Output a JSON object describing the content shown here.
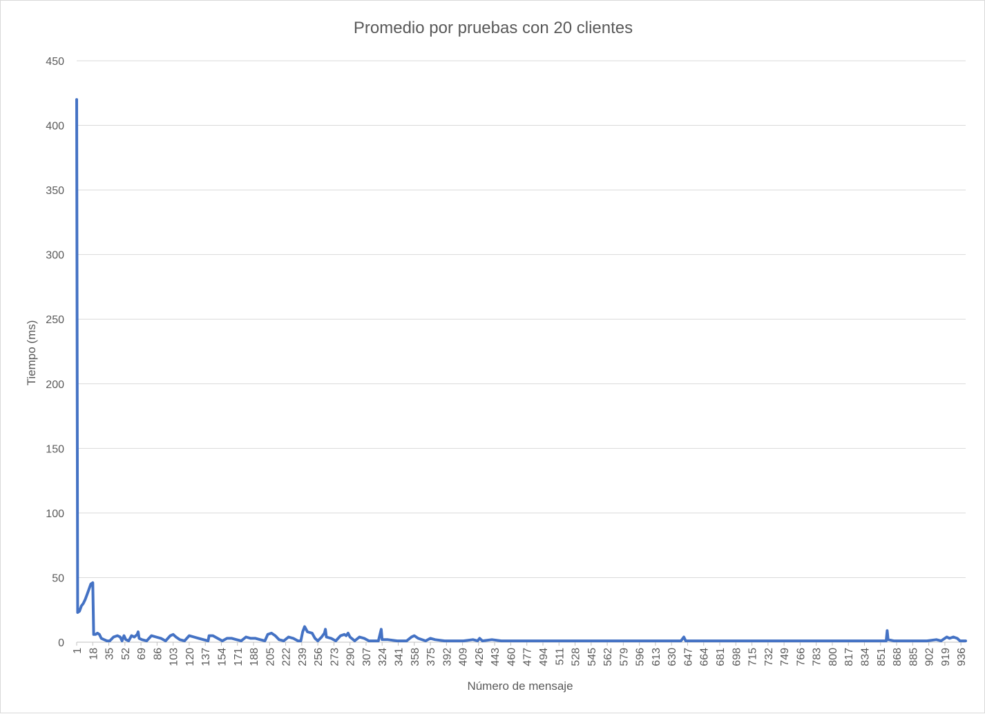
{
  "chart_data": {
    "type": "line",
    "title": "Promedio por pruebas con 20 clientes",
    "xlabel": "Número de mensaje",
    "ylabel": "Tiempo (ms)",
    "ylim": [
      0,
      450
    ],
    "yticks": [
      0,
      50,
      100,
      150,
      200,
      250,
      300,
      350,
      400,
      450
    ],
    "x_range": [
      1,
      941
    ],
    "x_tick_labels": [
      "1",
      "18",
      "35",
      "52",
      "69",
      "86",
      "103",
      "120",
      "137",
      "154",
      "171",
      "188",
      "205",
      "222",
      "239",
      "256",
      "273",
      "290",
      "307",
      "324",
      "341",
      "358",
      "375",
      "392",
      "409",
      "426",
      "443",
      "460",
      "477",
      "494",
      "511",
      "528",
      "545",
      "562",
      "579",
      "596",
      "613",
      "630",
      "647",
      "664",
      "681",
      "698",
      "715",
      "732",
      "749",
      "766",
      "783",
      "800",
      "817",
      "834",
      "851",
      "868",
      "885",
      "902",
      "919",
      "936"
    ],
    "grid": true,
    "legend": "none",
    "line_color": "#4472c4",
    "series": [
      {
        "points": [
          [
            1,
            420
          ],
          [
            2,
            23
          ],
          [
            4,
            24
          ],
          [
            6,
            28
          ],
          [
            8,
            30
          ],
          [
            10,
            33
          ],
          [
            12,
            37
          ],
          [
            14,
            41
          ],
          [
            16,
            45
          ],
          [
            18,
            46
          ],
          [
            19,
            6
          ],
          [
            21,
            6
          ],
          [
            23,
            7
          ],
          [
            25,
            6
          ],
          [
            27,
            3
          ],
          [
            30,
            2
          ],
          [
            33,
            1
          ],
          [
            36,
            1
          ],
          [
            40,
            4
          ],
          [
            44,
            5
          ],
          [
            47,
            4
          ],
          [
            49,
            1
          ],
          [
            51,
            5
          ],
          [
            53,
            2
          ],
          [
            56,
            1
          ],
          [
            59,
            5
          ],
          [
            62,
            4
          ],
          [
            65,
            6
          ],
          [
            66,
            8
          ],
          [
            67,
            3
          ],
          [
            70,
            2
          ],
          [
            75,
            1
          ],
          [
            80,
            5
          ],
          [
            85,
            4
          ],
          [
            90,
            3
          ],
          [
            95,
            1
          ],
          [
            100,
            5
          ],
          [
            103,
            6
          ],
          [
            106,
            4
          ],
          [
            110,
            2
          ],
          [
            115,
            1
          ],
          [
            120,
            5
          ],
          [
            125,
            4
          ],
          [
            130,
            3
          ],
          [
            135,
            2
          ],
          [
            140,
            1
          ],
          [
            141,
            5
          ],
          [
            145,
            5
          ],
          [
            150,
            3
          ],
          [
            155,
            1
          ],
          [
            160,
            3
          ],
          [
            165,
            3
          ],
          [
            170,
            2
          ],
          [
            175,
            1
          ],
          [
            180,
            4
          ],
          [
            185,
            3
          ],
          [
            190,
            3
          ],
          [
            195,
            2
          ],
          [
            200,
            1
          ],
          [
            203,
            6
          ],
          [
            207,
            7
          ],
          [
            211,
            5
          ],
          [
            215,
            2
          ],
          [
            220,
            1
          ],
          [
            225,
            4
          ],
          [
            230,
            3
          ],
          [
            235,
            1
          ],
          [
            238,
            1
          ],
          [
            240,
            8
          ],
          [
            242,
            12
          ],
          [
            245,
            8
          ],
          [
            250,
            7
          ],
          [
            253,
            3
          ],
          [
            256,
            1
          ],
          [
            260,
            4
          ],
          [
            263,
            7
          ],
          [
            264,
            10
          ],
          [
            265,
            4
          ],
          [
            270,
            3
          ],
          [
            275,
            1
          ],
          [
            280,
            5
          ],
          [
            284,
            6
          ],
          [
            286,
            5
          ],
          [
            288,
            7
          ],
          [
            290,
            4
          ],
          [
            295,
            1
          ],
          [
            300,
            4
          ],
          [
            305,
            3
          ],
          [
            310,
            1
          ],
          [
            320,
            1
          ],
          [
            323,
            10
          ],
          [
            324,
            2
          ],
          [
            330,
            2
          ],
          [
            340,
            1
          ],
          [
            350,
            1
          ],
          [
            355,
            4
          ],
          [
            358,
            5
          ],
          [
            362,
            3
          ],
          [
            370,
            1
          ],
          [
            375,
            3
          ],
          [
            380,
            2
          ],
          [
            390,
            1
          ],
          [
            400,
            1
          ],
          [
            410,
            1
          ],
          [
            420,
            2
          ],
          [
            425,
            1
          ],
          [
            427,
            3
          ],
          [
            430,
            1
          ],
          [
            440,
            2
          ],
          [
            450,
            1
          ],
          [
            460,
            1
          ],
          [
            470,
            1
          ],
          [
            480,
            1
          ],
          [
            490,
            1
          ],
          [
            500,
            1
          ],
          [
            520,
            1
          ],
          [
            540,
            1
          ],
          [
            560,
            1
          ],
          [
            580,
            1
          ],
          [
            600,
            1
          ],
          [
            610,
            1
          ],
          [
            620,
            1
          ],
          [
            630,
            1
          ],
          [
            640,
            1
          ],
          [
            643,
            4
          ],
          [
            645,
            1
          ],
          [
            660,
            1
          ],
          [
            680,
            1
          ],
          [
            700,
            1
          ],
          [
            720,
            1
          ],
          [
            740,
            1
          ],
          [
            760,
            1
          ],
          [
            780,
            1
          ],
          [
            800,
            1
          ],
          [
            820,
            1
          ],
          [
            840,
            1
          ],
          [
            850,
            1
          ],
          [
            857,
            1
          ],
          [
            858,
            9
          ],
          [
            859,
            2
          ],
          [
            865,
            1
          ],
          [
            880,
            1
          ],
          [
            900,
            1
          ],
          [
            910,
            2
          ],
          [
            915,
            1
          ],
          [
            921,
            4
          ],
          [
            924,
            3
          ],
          [
            928,
            4
          ],
          [
            932,
            3
          ],
          [
            935,
            1
          ],
          [
            940,
            1
          ],
          [
            941,
            1
          ]
        ]
      }
    ]
  }
}
